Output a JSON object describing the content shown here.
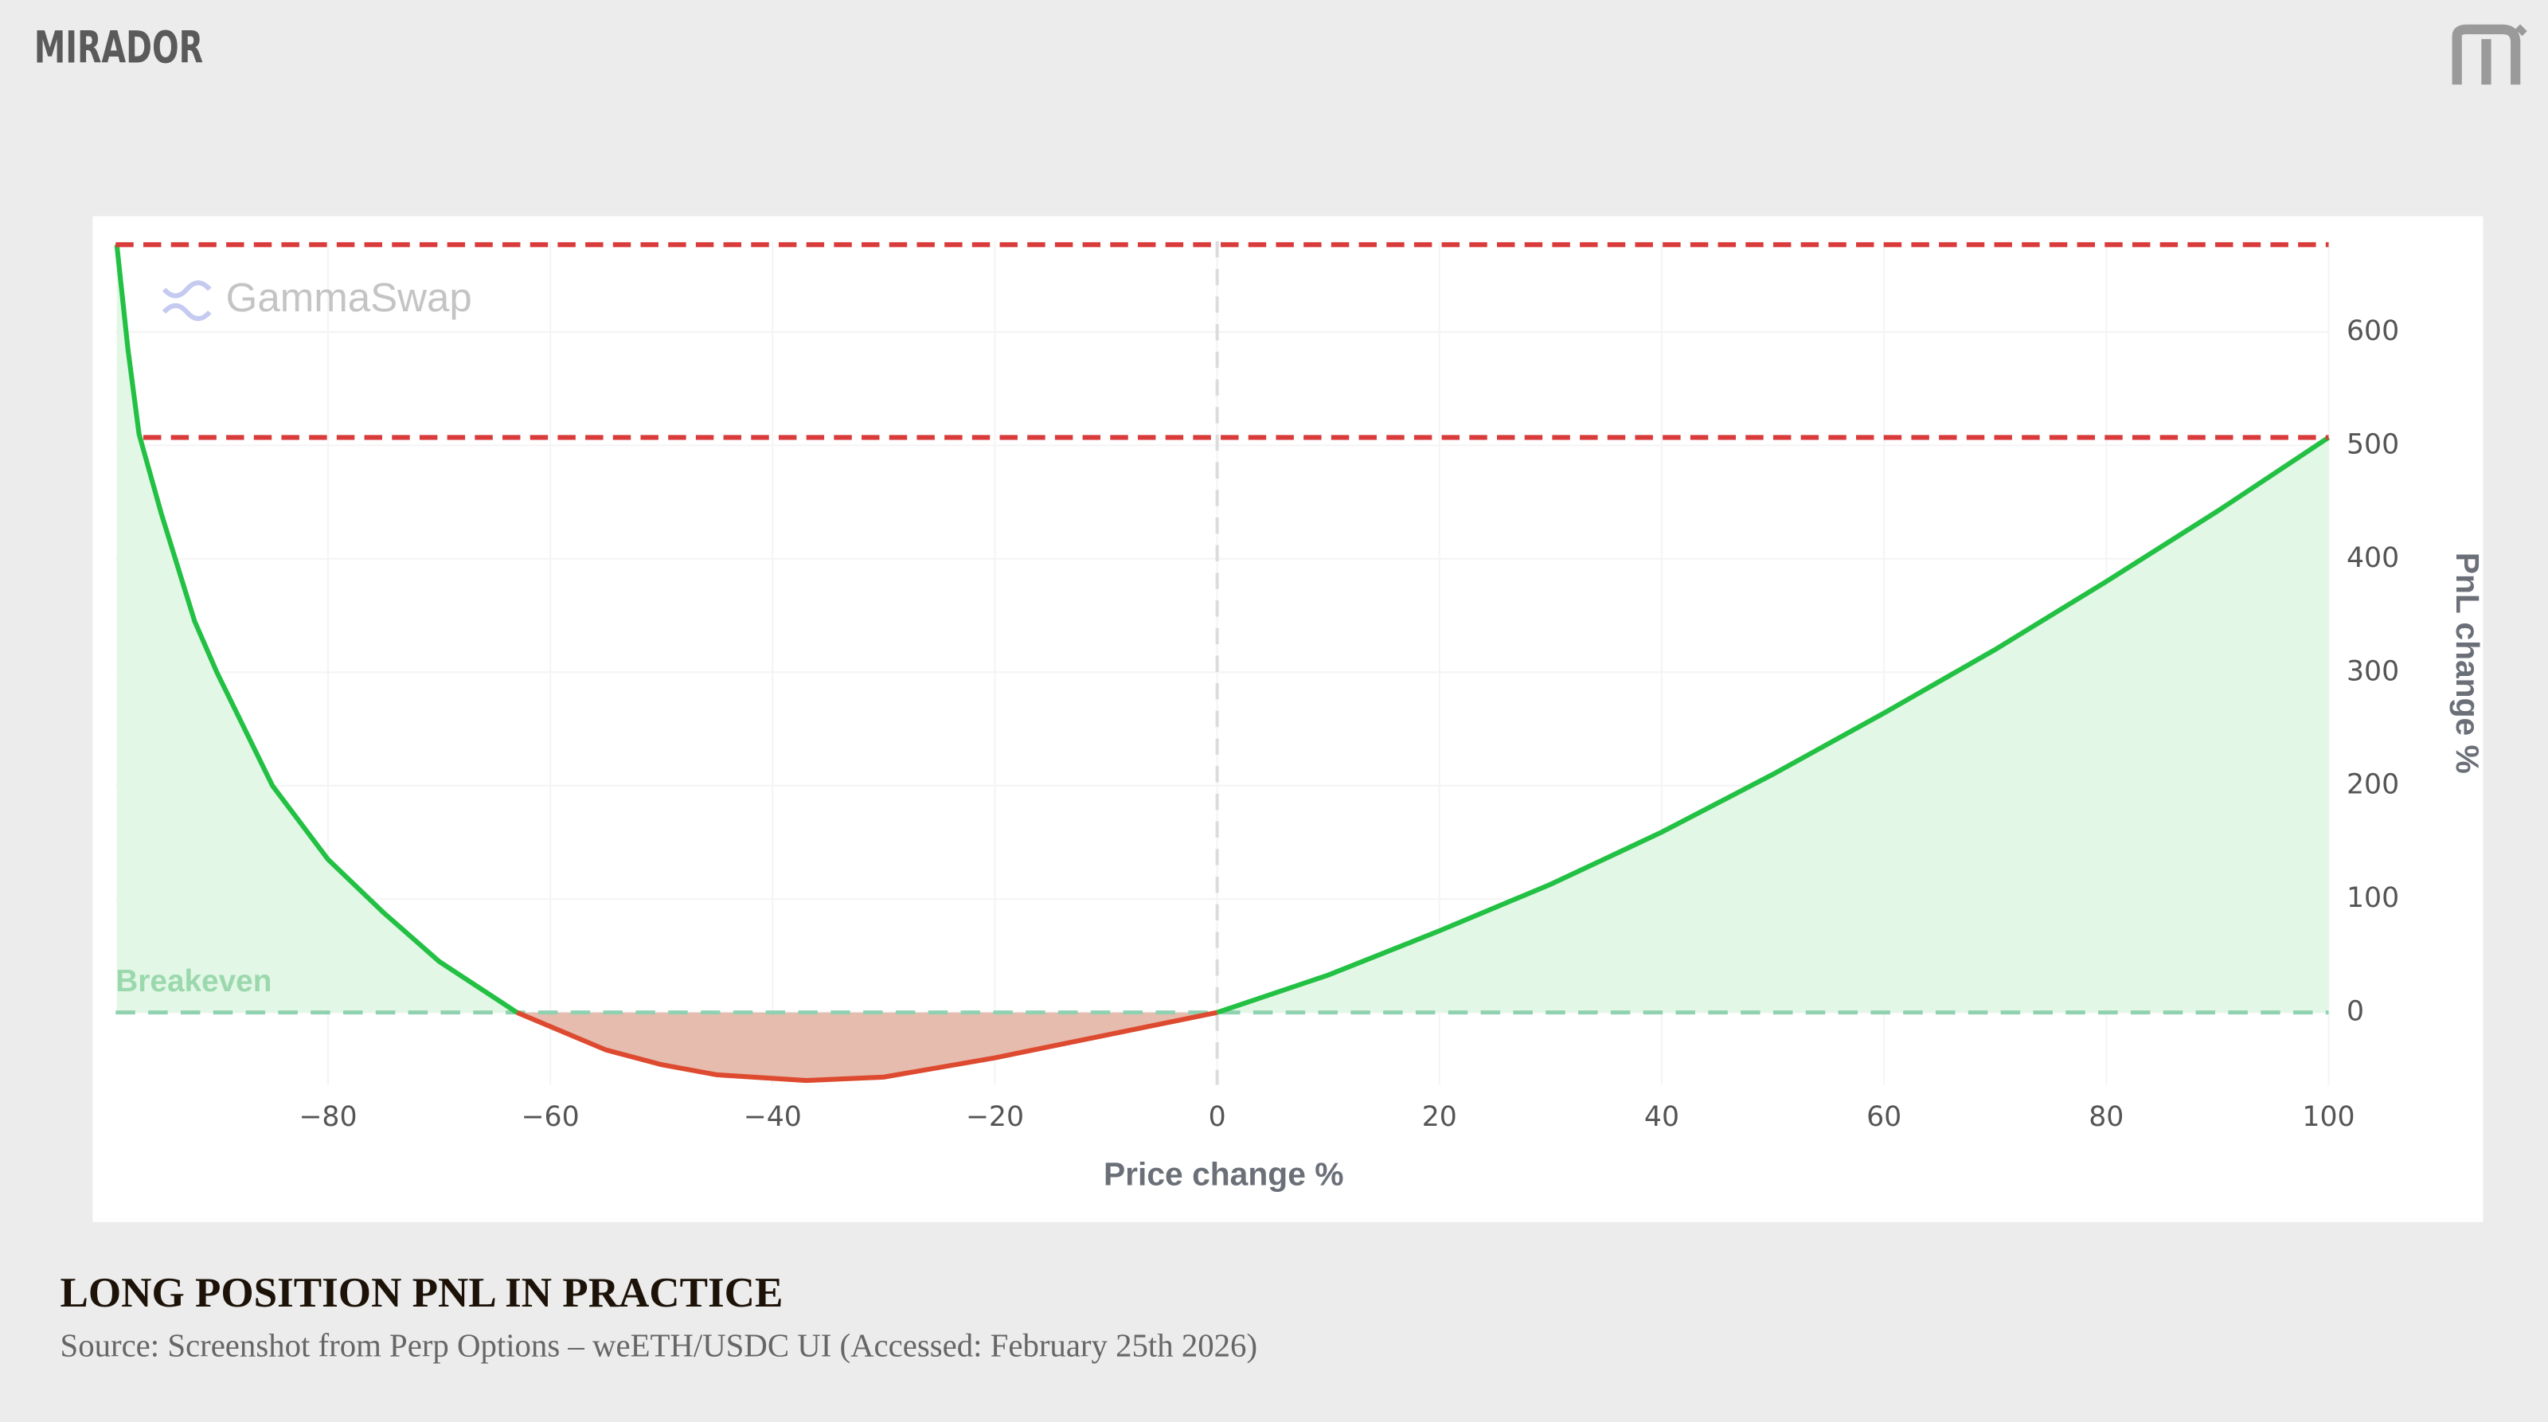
{
  "header": {
    "brand": "MIRADOR"
  },
  "caption": {
    "title": "LONG POSITION PNL IN PRACTICE",
    "source": "Source: Screenshot from Perp Options – weETH/USDC UI (Accessed: February 25th 2026)"
  },
  "chart_data": {
    "type": "line",
    "watermark": "GammaSwap",
    "x_label": "Price change %",
    "y_label": "PnL change %",
    "x": [
      -99,
      -98,
      -97,
      -95,
      -92,
      -90,
      -85,
      -80,
      -75,
      -70,
      -63,
      -55,
      -50,
      -45,
      -37,
      -30,
      -20,
      -10,
      0,
      10,
      20,
      30,
      40,
      50,
      60,
      70,
      80,
      90,
      100
    ],
    "values": [
      677,
      585,
      510,
      440,
      345,
      300,
      200,
      135,
      88,
      45,
      0,
      -33,
      -46,
      -55,
      -60,
      -57,
      -40,
      -20,
      0,
      33,
      72,
      113,
      159,
      210,
      264,
      320,
      380,
      442,
      507
    ],
    "color_positive": "#22c043",
    "color_negative": "#dd4a30",
    "fill_positive": "#e2f7e6",
    "fill_negative": "#e6bcae",
    "xlim": [
      -99.1,
      100
    ],
    "ylim": [
      -64,
      680
    ],
    "xticks": [
      {
        "value": -80,
        "label": "−80"
      },
      {
        "value": -60,
        "label": "−60"
      },
      {
        "value": -40,
        "label": "−40"
      },
      {
        "value": -20,
        "label": "−20"
      },
      0,
      20,
      40,
      60,
      80,
      100
    ],
    "yticks": [
      0,
      100,
      200,
      300,
      400,
      500,
      600
    ],
    "y_axis_side": "right",
    "grid": true,
    "breakeven": {
      "label": "Breakeven",
      "value": 0,
      "color": "#8fd1b0"
    },
    "reference_lines": [
      {
        "value": 677,
        "color": "#d93a3a"
      },
      {
        "value": 507,
        "color": "#d93a3a"
      }
    ]
  }
}
